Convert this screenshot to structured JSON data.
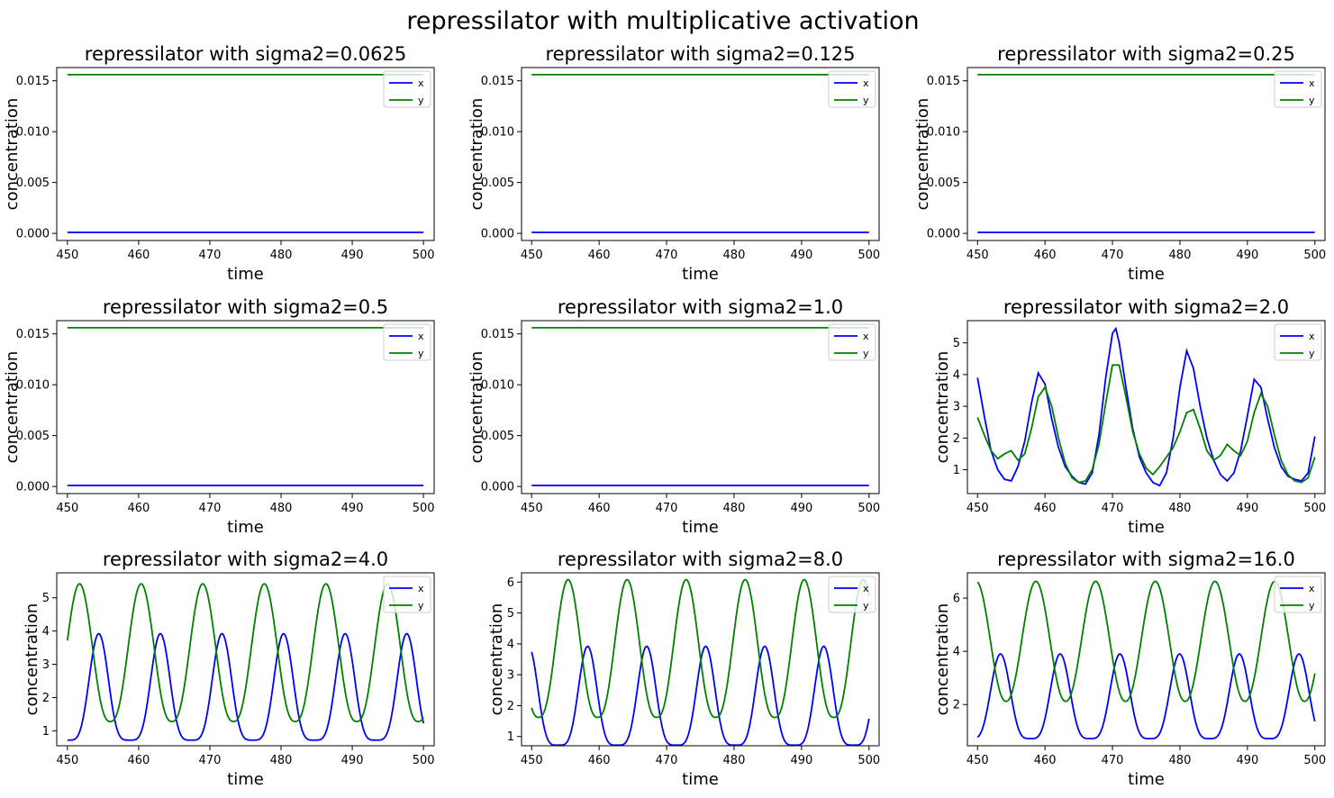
{
  "figure": {
    "suptitle": "repressilator with multiplicative activation"
  },
  "colors": {
    "x": "#0000ff",
    "y": "#008000",
    "axes": "#000000",
    "background": "#ffffff"
  },
  "chart_data": [
    {
      "type": "line",
      "title": "repressilator with sigma2=0.0625",
      "xlabel": "time",
      "ylabel": "concentration",
      "xlim": [
        448.5,
        501.5
      ],
      "ylim": [
        -0.0007,
        0.0163
      ],
      "xticks": [
        450,
        460,
        470,
        480,
        490,
        500
      ],
      "yticks": [
        0.0,
        0.005,
        0.01,
        0.015
      ],
      "ytick_labels": [
        "0.000",
        "0.005",
        "0.010",
        "0.015"
      ],
      "legend": "top-right",
      "grid": false,
      "series": [
        {
          "name": "x",
          "kind": "constant",
          "value": 0.0001
        },
        {
          "name": "y",
          "kind": "constant",
          "value": 0.0156
        }
      ]
    },
    {
      "type": "line",
      "title": "repressilator with sigma2=0.125",
      "xlabel": "time",
      "ylabel": "concentration",
      "xlim": [
        448.5,
        501.5
      ],
      "ylim": [
        -0.0007,
        0.0163
      ],
      "xticks": [
        450,
        460,
        470,
        480,
        490,
        500
      ],
      "yticks": [
        0.0,
        0.005,
        0.01,
        0.015
      ],
      "ytick_labels": [
        "0.000",
        "0.005",
        "0.010",
        "0.015"
      ],
      "legend": "top-right",
      "grid": false,
      "series": [
        {
          "name": "x",
          "kind": "constant",
          "value": 0.0001
        },
        {
          "name": "y",
          "kind": "constant",
          "value": 0.0156
        }
      ]
    },
    {
      "type": "line",
      "title": "repressilator with sigma2=0.25",
      "xlabel": "time",
      "ylabel": "concentration",
      "xlim": [
        448.5,
        501.5
      ],
      "ylim": [
        -0.0007,
        0.0163
      ],
      "xticks": [
        450,
        460,
        470,
        480,
        490,
        500
      ],
      "yticks": [
        0.0,
        0.005,
        0.01,
        0.015
      ],
      "ytick_labels": [
        "0.000",
        "0.005",
        "0.010",
        "0.015"
      ],
      "legend": "top-right",
      "grid": false,
      "series": [
        {
          "name": "x",
          "kind": "constant",
          "value": 0.0001
        },
        {
          "name": "y",
          "kind": "constant",
          "value": 0.0156
        }
      ]
    },
    {
      "type": "line",
      "title": "repressilator with sigma2=0.5",
      "xlabel": "time",
      "ylabel": "concentration",
      "xlim": [
        448.5,
        501.5
      ],
      "ylim": [
        -0.0007,
        0.0163
      ],
      "xticks": [
        450,
        460,
        470,
        480,
        490,
        500
      ],
      "yticks": [
        0.0,
        0.005,
        0.01,
        0.015
      ],
      "ytick_labels": [
        "0.000",
        "0.005",
        "0.010",
        "0.015"
      ],
      "legend": "top-right",
      "grid": false,
      "series": [
        {
          "name": "x",
          "kind": "constant",
          "value": 0.0001
        },
        {
          "name": "y",
          "kind": "constant",
          "value": 0.0156
        }
      ]
    },
    {
      "type": "line",
      "title": "repressilator with sigma2=1.0",
      "xlabel": "time",
      "ylabel": "concentration",
      "xlim": [
        448.5,
        501.5
      ],
      "ylim": [
        -0.0007,
        0.0163
      ],
      "xticks": [
        450,
        460,
        470,
        480,
        490,
        500
      ],
      "yticks": [
        0.0,
        0.005,
        0.01,
        0.015
      ],
      "ytick_labels": [
        "0.000",
        "0.005",
        "0.010",
        "0.015"
      ],
      "legend": "top-right",
      "grid": false,
      "series": [
        {
          "name": "x",
          "kind": "constant",
          "value": 0.0001
        },
        {
          "name": "y",
          "kind": "constant",
          "value": 0.0156
        }
      ]
    },
    {
      "type": "line",
      "title": "repressilator with sigma2=2.0",
      "xlabel": "time",
      "ylabel": "concentration",
      "xlim": [
        448.5,
        501.5
      ],
      "ylim": [
        0.25,
        5.7
      ],
      "xticks": [
        450,
        460,
        470,
        480,
        490,
        500
      ],
      "yticks": [
        1,
        2,
        3,
        4,
        5
      ],
      "ytick_labels": [
        "1",
        "2",
        "3",
        "4",
        "5"
      ],
      "legend": "top-right",
      "grid": false,
      "series": [
        {
          "name": "x",
          "kind": "points",
          "x": [
            450,
            451,
            452,
            453,
            454,
            455,
            456,
            457,
            458,
            459,
            460,
            461,
            462,
            463,
            464,
            465,
            466,
            467,
            468,
            469,
            470,
            470.5,
            471,
            472,
            473,
            474,
            475,
            476,
            477,
            478,
            479,
            480,
            481,
            482,
            483,
            484,
            485,
            486,
            487,
            488,
            489,
            490,
            491,
            492,
            493,
            494,
            495,
            496,
            497,
            498,
            499,
            500
          ],
          "y": [
            3.9,
            2.7,
            1.6,
            1.0,
            0.7,
            0.65,
            1.1,
            1.9,
            3.1,
            4.05,
            3.7,
            2.6,
            1.7,
            1.1,
            0.8,
            0.6,
            0.55,
            0.9,
            2.1,
            3.9,
            5.3,
            5.45,
            5.0,
            3.6,
            2.3,
            1.4,
            0.9,
            0.6,
            0.5,
            0.9,
            2.0,
            3.6,
            4.75,
            4.2,
            3.0,
            2.0,
            1.3,
            0.85,
            0.65,
            0.9,
            1.6,
            2.7,
            3.85,
            3.6,
            2.6,
            1.7,
            1.1,
            0.8,
            0.7,
            0.65,
            0.9,
            2.05
          ]
        },
        {
          "name": "y",
          "kind": "points",
          "x": [
            450,
            451,
            452,
            453,
            454,
            455,
            456,
            457,
            458,
            459,
            460,
            461,
            462,
            463,
            464,
            465,
            466,
            467,
            468,
            469,
            470,
            471,
            472,
            473,
            474,
            475,
            476,
            477,
            478,
            479,
            480,
            481,
            482,
            483,
            484,
            485,
            486,
            487,
            488,
            489,
            490,
            491,
            492,
            493,
            494,
            495,
            496,
            497,
            498,
            499,
            500
          ],
          "y": [
            2.65,
            2.1,
            1.6,
            1.35,
            1.5,
            1.6,
            1.3,
            1.5,
            2.3,
            3.3,
            3.6,
            3.0,
            2.0,
            1.2,
            0.75,
            0.6,
            0.65,
            1.0,
            1.8,
            3.1,
            4.3,
            4.3,
            3.3,
            2.2,
            1.5,
            1.05,
            0.85,
            1.1,
            1.4,
            1.7,
            2.2,
            2.8,
            2.9,
            2.3,
            1.6,
            1.3,
            1.45,
            1.8,
            1.6,
            1.45,
            1.9,
            2.8,
            3.4,
            3.0,
            2.1,
            1.3,
            0.85,
            0.65,
            0.6,
            0.75,
            1.4
          ]
        }
      ]
    },
    {
      "type": "line",
      "title": "repressilator with sigma2=4.0",
      "xlabel": "time",
      "ylabel": "concentration",
      "xlim": [
        448.5,
        501.5
      ],
      "ylim": [
        0.55,
        5.75
      ],
      "xticks": [
        450,
        460,
        470,
        480,
        490,
        500
      ],
      "yticks": [
        1,
        2,
        3,
        4,
        5
      ],
      "ytick_labels": [
        "1",
        "2",
        "3",
        "4",
        "5"
      ],
      "legend": "top-right",
      "grid": false,
      "series": [
        {
          "name": "x",
          "kind": "wave",
          "period": 8.65,
          "peak_time": 454.4,
          "min": 0.72,
          "max": 3.92,
          "sharp": 2.2
        },
        {
          "name": "y",
          "kind": "wave",
          "period": 8.65,
          "peak_time": 451.7,
          "min": 1.28,
          "max": 5.42,
          "sharp": 1.3
        }
      ]
    },
    {
      "type": "line",
      "title": "repressilator with sigma2=8.0",
      "xlabel": "time",
      "ylabel": "concentration",
      "xlim": [
        448.5,
        501.5
      ],
      "ylim": [
        0.7,
        6.3
      ],
      "xticks": [
        450,
        460,
        470,
        480,
        490,
        500
      ],
      "yticks": [
        1,
        2,
        3,
        4,
        5,
        6
      ],
      "ytick_labels": [
        "1",
        "2",
        "3",
        "4",
        "5",
        "6"
      ],
      "legend": "top-right",
      "grid": false,
      "series": [
        {
          "name": "x",
          "kind": "wave",
          "period": 8.75,
          "peak_time": 458.3,
          "min": 0.72,
          "max": 3.92,
          "sharp": 2.2
        },
        {
          "name": "y",
          "kind": "wave",
          "period": 8.75,
          "peak_time": 455.4,
          "min": 1.62,
          "max": 6.08,
          "sharp": 1.3
        }
      ]
    },
    {
      "type": "line",
      "title": "repressilator with sigma2=16.0",
      "xlabel": "time",
      "ylabel": "concentration",
      "xlim": [
        448.5,
        501.5
      ],
      "ylim": [
        0.45,
        6.95
      ],
      "xticks": [
        450,
        460,
        470,
        480,
        490,
        500
      ],
      "yticks": [
        2,
        4,
        6
      ],
      "ytick_labels": [
        "2",
        "4",
        "6"
      ],
      "legend": "top-right",
      "grid": false,
      "series": [
        {
          "name": "x",
          "kind": "wave",
          "period": 8.85,
          "peak_time": 453.4,
          "min": 0.72,
          "max": 3.9,
          "sharp": 2.0
        },
        {
          "name": "y",
          "kind": "wave",
          "period": 8.85,
          "peak_time": 449.8,
          "min": 2.12,
          "max": 6.63,
          "sharp": 1.1
        }
      ]
    }
  ]
}
